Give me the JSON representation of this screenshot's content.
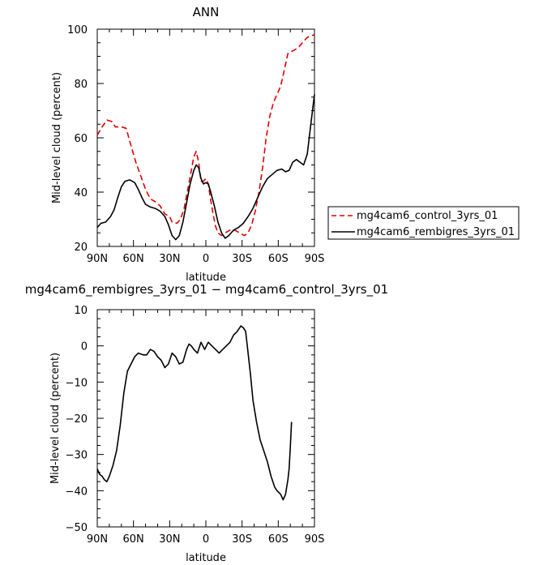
{
  "chart_data": [
    {
      "type": "line",
      "title": "ANN",
      "xlabel": "latitude",
      "ylabel": "Mid-level cloud (percent)",
      "xlim": [
        90,
        -90
      ],
      "ylim": [
        20,
        100
      ],
      "xticks": [
        90,
        60,
        30,
        0,
        -30,
        -60,
        -90
      ],
      "xticklabels": [
        "90N",
        "60N",
        "30N",
        "0",
        "30S",
        "60S",
        "90S"
      ],
      "yticks": [
        20,
        40,
        60,
        80,
        100
      ],
      "yticklabels": [
        "20",
        "40",
        "60",
        "80",
        "100"
      ],
      "grid": false,
      "legend_position": "right",
      "series": [
        {
          "name": "mg4cam6_control_3yrs_01",
          "color": "#e00000",
          "style": "dashed",
          "points": [
            [
              90,
              61
            ],
            [
              86,
              64
            ],
            [
              82,
              66.5
            ],
            [
              78,
              66
            ],
            [
              75,
              64
            ],
            [
              70,
              64
            ],
            [
              66,
              63.5
            ],
            [
              62,
              57
            ],
            [
              58,
              51
            ],
            [
              54,
              46
            ],
            [
              50,
              41
            ],
            [
              46,
              37.5
            ],
            [
              42,
              36.5
            ],
            [
              38,
              35
            ],
            [
              34,
              32
            ],
            [
              30,
              31
            ],
            [
              28,
              29
            ],
            [
              24,
              28.5
            ],
            [
              21,
              30
            ],
            [
              18,
              34
            ],
            [
              15,
              41
            ],
            [
              12,
              48
            ],
            [
              10,
              53
            ],
            [
              8,
              55
            ],
            [
              6,
              51
            ],
            [
              4,
              44
            ],
            [
              2,
              44
            ],
            [
              0,
              45
            ],
            [
              -2,
              43
            ],
            [
              -4,
              37
            ],
            [
              -6,
              32
            ],
            [
              -8,
              27.5
            ],
            [
              -10,
              25
            ],
            [
              -13,
              24
            ],
            [
              -16,
              25
            ],
            [
              -20,
              26
            ],
            [
              -24,
              26
            ],
            [
              -28,
              25
            ],
            [
              -32,
              24
            ],
            [
              -35,
              25
            ],
            [
              -38,
              28
            ],
            [
              -41,
              33
            ],
            [
              -44,
              40
            ],
            [
              -47,
              49
            ],
            [
              -50,
              60
            ],
            [
              -53,
              68
            ],
            [
              -56,
              73
            ],
            [
              -59,
              76
            ],
            [
              -62,
              79
            ],
            [
              -65,
              85
            ],
            [
              -68,
              91
            ],
            [
              -72,
              92
            ],
            [
              -76,
              93
            ],
            [
              -80,
              95
            ],
            [
              -84,
              97
            ],
            [
              -87,
              97.5
            ],
            [
              -90,
              98
            ]
          ]
        },
        {
          "name": "mg4cam6_rembigres_3yrs_01",
          "color": "#000000",
          "style": "solid",
          "points": [
            [
              90,
              27
            ],
            [
              87,
              28.5
            ],
            [
              83,
              29
            ],
            [
              79,
              31
            ],
            [
              76,
              33.5
            ],
            [
              73,
              38
            ],
            [
              70,
              42
            ],
            [
              67,
              44
            ],
            [
              63,
              44.5
            ],
            [
              59,
              43.5
            ],
            [
              56,
              41
            ],
            [
              53,
              38
            ],
            [
              50,
              35.5
            ],
            [
              46,
              34.5
            ],
            [
              42,
              34
            ],
            [
              38,
              33
            ],
            [
              34,
              31
            ],
            [
              31,
              28
            ],
            [
              28,
              24
            ],
            [
              25,
              22.5
            ],
            [
              22,
              24
            ],
            [
              19,
              29
            ],
            [
              16,
              36
            ],
            [
              13,
              43
            ],
            [
              10,
              48
            ],
            [
              8,
              50
            ],
            [
              6,
              49
            ],
            [
              4,
              45
            ],
            [
              2,
              43
            ],
            [
              0,
              43.5
            ],
            [
              -2,
              43
            ],
            [
              -4,
              40
            ],
            [
              -7,
              35
            ],
            [
              -10,
              29
            ],
            [
              -13,
              25
            ],
            [
              -16,
              23
            ],
            [
              -19,
              24
            ],
            [
              -23,
              26
            ],
            [
              -27,
              27
            ],
            [
              -31,
              28.5
            ],
            [
              -35,
              31
            ],
            [
              -39,
              34
            ],
            [
              -43,
              38
            ],
            [
              -47,
              42
            ],
            [
              -51,
              45
            ],
            [
              -55,
              46.5
            ],
            [
              -59,
              48
            ],
            [
              -63,
              48.5
            ],
            [
              -66,
              47.5
            ],
            [
              -69,
              48
            ],
            [
              -72,
              51
            ],
            [
              -75,
              52
            ],
            [
              -78,
              51
            ],
            [
              -81,
              50
            ],
            [
              -84,
              54
            ],
            [
              -87,
              65
            ],
            [
              -90,
              76
            ]
          ]
        }
      ]
    },
    {
      "type": "line",
      "title": "mg4cam6_rembigres_3yrs_01 − mg4cam6_control_3yrs_01",
      "xlabel": "latitude",
      "ylabel": "Mid-level cloud (percent)",
      "xlim": [
        90,
        -90
      ],
      "ylim": [
        -50,
        10
      ],
      "xticks": [
        90,
        60,
        30,
        0,
        -30,
        -60,
        -90
      ],
      "xticklabels": [
        "90N",
        "60N",
        "30N",
        "0",
        "30S",
        "60S",
        "90S"
      ],
      "yticks": [
        -50,
        -40,
        -30,
        -20,
        -10,
        0,
        10
      ],
      "yticklabels": [
        "−50",
        "−40",
        "−30",
        "−20",
        "−10",
        "0",
        "10"
      ],
      "grid": false,
      "series": [
        {
          "color": "#000000",
          "style": "solid",
          "points": [
            [
              90,
              -34
            ],
            [
              88,
              -35.5
            ],
            [
              86,
              -36
            ],
            [
              84,
              -37
            ],
            [
              82,
              -37.5
            ],
            [
              80,
              -36
            ],
            [
              77,
              -33
            ],
            [
              74,
              -29
            ],
            [
              71,
              -22
            ],
            [
              68,
              -13
            ],
            [
              65,
              -7
            ],
            [
              62,
              -5
            ],
            [
              59,
              -3
            ],
            [
              56,
              -2
            ],
            [
              52,
              -2.5
            ],
            [
              49,
              -2.5
            ],
            [
              46,
              -1
            ],
            [
              43,
              -1.5
            ],
            [
              40,
              -3
            ],
            [
              37,
              -4
            ],
            [
              34,
              -6
            ],
            [
              31,
              -5
            ],
            [
              28,
              -2
            ],
            [
              25,
              -3
            ],
            [
              22,
              -5
            ],
            [
              19,
              -4.5
            ],
            [
              16,
              -1
            ],
            [
              14,
              0.5
            ],
            [
              12,
              0
            ],
            [
              10,
              -1
            ],
            [
              7,
              -2
            ],
            [
              4,
              1
            ],
            [
              1,
              -1
            ],
            [
              -2,
              1
            ],
            [
              -5,
              0
            ],
            [
              -8,
              -1
            ],
            [
              -11,
              -2
            ],
            [
              -14,
              -1
            ],
            [
              -17,
              0
            ],
            [
              -20,
              1
            ],
            [
              -23,
              3
            ],
            [
              -26,
              4
            ],
            [
              -29,
              5.5
            ],
            [
              -31,
              5
            ],
            [
              -33,
              4
            ],
            [
              -35,
              -2
            ],
            [
              -37,
              -8
            ],
            [
              -39,
              -15
            ],
            [
              -42,
              -21
            ],
            [
              -45,
              -26
            ],
            [
              -48,
              -29
            ],
            [
              -51,
              -32
            ],
            [
              -54,
              -36
            ],
            [
              -57,
              -39
            ],
            [
              -59,
              -40
            ],
            [
              -62,
              -41
            ],
            [
              -64,
              -42.5
            ],
            [
              -66,
              -41
            ],
            [
              -68,
              -37
            ],
            [
              -69,
              -34
            ],
            [
              -70,
              -28
            ],
            [
              -71,
              -21
            ]
          ]
        }
      ]
    }
  ]
}
